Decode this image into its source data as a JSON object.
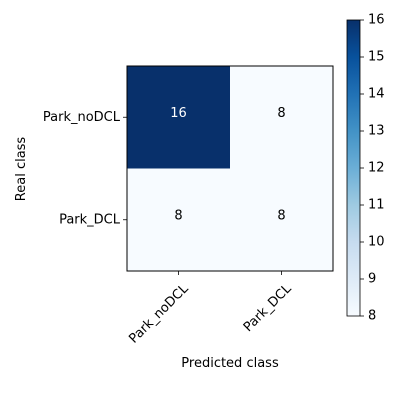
{
  "chart_data": {
    "type": "heatmap",
    "title": "",
    "xlabel": "Predicted class",
    "ylabel": "Real class",
    "x_categories": [
      "Park_noDCL",
      "Park_DCL"
    ],
    "y_categories": [
      "Park_noDCL",
      "Park_DCL"
    ],
    "values": [
      [
        16,
        8
      ],
      [
        8,
        8
      ]
    ],
    "colorbar": {
      "min": 8,
      "max": 16,
      "ticks": [
        8,
        9,
        10,
        11,
        12,
        13,
        14,
        15,
        16
      ],
      "colormap": "Blues",
      "low_color": "#f7fbff",
      "high_color": "#08306b"
    },
    "high_value_text_color": "#ffffff",
    "low_value_text_color": "#000000",
    "grid": false
  }
}
